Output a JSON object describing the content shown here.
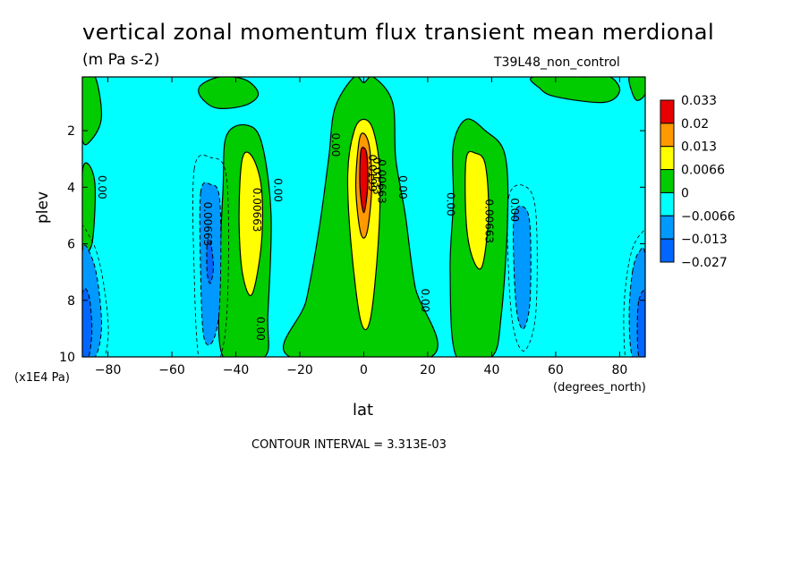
{
  "chart_data": {
    "type": "heatmap",
    "title": "vertical zonal momentum flux transient mean merdional",
    "units": "(m Pa s-2)",
    "dataset": "T39L48_non_control",
    "xlabel": "lat",
    "x_unit": "(degrees_north)",
    "ylabel": "plev",
    "y_unit": "(x1E4 Pa)",
    "xlim": [
      -88,
      88
    ],
    "ylim": [
      0.1,
      10
    ],
    "y_inverted": true,
    "x_ticks": [
      -80,
      -60,
      -40,
      -20,
      0,
      20,
      40,
      60,
      80
    ],
    "x_tick_labels": [
      "−80",
      "−60",
      "−40",
      "−20",
      "0",
      "20",
      "40",
      "60",
      "80"
    ],
    "y_ticks": [
      2,
      4,
      6,
      8,
      10
    ],
    "y_tick_labels": [
      "2",
      "4",
      "6",
      "8",
      "10"
    ],
    "contour_interval_text": "CONTOUR INTERVAL = 3.313E-03",
    "legend": {
      "placement": "right",
      "levels": [
        "0.033",
        "0.02",
        "0.013",
        "0.0066",
        "0",
        "−0.0066",
        "−0.013",
        "−0.027"
      ],
      "colors": [
        "#e60000",
        "#ff9900",
        "#ffff00",
        "#00cc00",
        "#00ffff",
        "#0099ff",
        "#0066ff"
      ]
    },
    "fill_levels": {
      "bg": "#00ffff",
      "pos1": "#00cc00",
      "pos2": "#ffff00",
      "pos3": "#ff9900",
      "pos4": "#e60000",
      "neg1": "#0099ff",
      "neg2": "#0066ff"
    },
    "regions": [
      {
        "kind": "pos1",
        "points": [
          [
            -3,
            0.1
          ],
          [
            0,
            0.3
          ],
          [
            3,
            0.1
          ],
          [
            9,
            1.0
          ],
          [
            10,
            3.0
          ],
          [
            13,
            5.0
          ],
          [
            16,
            7.5
          ],
          [
            21,
            10
          ],
          [
            -23,
            10
          ],
          [
            -18,
            8.0
          ],
          [
            -14,
            5.5
          ],
          [
            -11,
            3.0
          ],
          [
            -9,
            1.2
          ]
        ]
      },
      {
        "kind": "pos2",
        "points": [
          [
            -3,
            2.0
          ],
          [
            0,
            1.6
          ],
          [
            3,
            2.0
          ],
          [
            5,
            3.5
          ],
          [
            4.5,
            6.0
          ],
          [
            2,
            8.7
          ],
          [
            -1,
            8.7
          ],
          [
            -4,
            6.0
          ],
          [
            -5,
            3.5
          ]
        ]
      },
      {
        "kind": "pos3",
        "points": [
          [
            -1.5,
            2.4
          ],
          [
            0,
            2.1
          ],
          [
            1.8,
            2.6
          ],
          [
            2.5,
            4.0
          ],
          [
            1,
            5.6
          ],
          [
            -1,
            5.6
          ],
          [
            -2.5,
            4.0
          ]
        ]
      },
      {
        "kind": "pos4",
        "points": [
          [
            -1,
            2.8
          ],
          [
            0,
            2.6
          ],
          [
            1,
            2.9
          ],
          [
            1.2,
            4.0
          ],
          [
            0,
            4.9
          ],
          [
            -1.2,
            4.0
          ]
        ]
      },
      {
        "kind": "pos1",
        "points": [
          [
            -43,
            2.2
          ],
          [
            -37,
            1.8
          ],
          [
            -32,
            2.4
          ],
          [
            -29,
            5.0
          ],
          [
            -30,
            8.5
          ],
          [
            -31,
            10
          ],
          [
            -44,
            10
          ],
          [
            -45,
            7.0
          ],
          [
            -44,
            4.0
          ]
        ]
      },
      {
        "kind": "pos2",
        "points": [
          [
            -38,
            3.0
          ],
          [
            -35,
            2.9
          ],
          [
            -32,
            4.0
          ],
          [
            -32,
            6.0
          ],
          [
            -35,
            7.8
          ],
          [
            -38,
            7.0
          ],
          [
            -39,
            5.0
          ]
        ]
      },
      {
        "kind": "pos1",
        "points": [
          [
            28,
            2.5
          ],
          [
            32,
            1.6
          ],
          [
            38,
            2.0
          ],
          [
            44,
            2.8
          ],
          [
            45,
            5.0
          ],
          [
            43,
            8.5
          ],
          [
            40,
            10
          ],
          [
            29,
            10
          ],
          [
            27,
            7.0
          ],
          [
            28,
            4.5
          ]
        ]
      },
      {
        "kind": "pos2",
        "points": [
          [
            32,
            3.0
          ],
          [
            35,
            2.8
          ],
          [
            38,
            3.2
          ],
          [
            39,
            5.0
          ],
          [
            37,
            6.8
          ],
          [
            34,
            6.5
          ],
          [
            32,
            5.2
          ]
        ]
      },
      {
        "kind": "pos1",
        "points": [
          [
            -51,
            0.4
          ],
          [
            -45,
            0.1
          ],
          [
            -37,
            0.2
          ],
          [
            -33,
            0.7
          ],
          [
            -37,
            1.1
          ],
          [
            -46,
            1.2
          ],
          [
            -51,
            0.8
          ]
        ]
      },
      {
        "kind": "pos1",
        "points": [
          [
            53,
            0.1
          ],
          [
            70,
            0.1
          ],
          [
            77,
            0.1
          ],
          [
            80,
            0.6
          ],
          [
            75,
            1.0
          ],
          [
            60,
            0.8
          ],
          [
            55,
            0.5
          ]
        ]
      },
      {
        "kind": "pos1",
        "points": [
          [
            -88,
            0.1
          ],
          [
            -84,
            0.1
          ],
          [
            -82,
            1.5
          ],
          [
            -85,
            2.3
          ],
          [
            -88,
            2.3
          ]
        ]
      },
      {
        "kind": "pos1",
        "points": [
          [
            83,
            0.1
          ],
          [
            88,
            0.1
          ],
          [
            88,
            0.7
          ],
          [
            85,
            0.9
          ]
        ]
      },
      {
        "kind": "pos1",
        "points": [
          [
            -88,
            3.5
          ],
          [
            -86,
            3.2
          ],
          [
            -84,
            4.0
          ],
          [
            -85,
            6.0
          ],
          [
            -88,
            6.0
          ]
        ]
      },
      {
        "kind": "neg1",
        "points": [
          [
            -51,
            4.2
          ],
          [
            -48,
            3.9
          ],
          [
            -45,
            4.5
          ],
          [
            -45,
            8.0
          ],
          [
            -47,
            9.4
          ],
          [
            -50,
            9.3
          ],
          [
            -51,
            7.0
          ]
        ]
      },
      {
        "kind": "neg2",
        "points": [
          [
            -49,
            6.0
          ],
          [
            -48,
            5.9
          ],
          [
            -47,
            6.8
          ],
          [
            -48,
            7.4
          ],
          [
            -49,
            7.0
          ]
        ]
      },
      {
        "kind": "neg1",
        "points": [
          [
            47,
            5.0
          ],
          [
            50,
            4.7
          ],
          [
            52,
            5.4
          ],
          [
            52,
            8.0
          ],
          [
            50,
            9.0
          ],
          [
            48,
            8.5
          ],
          [
            47,
            7.0
          ]
        ]
      },
      {
        "kind": "neg1",
        "points": [
          [
            -88,
            6.3
          ],
          [
            -85,
            6.5
          ],
          [
            -83,
            7.5
          ],
          [
            -82,
            9.0
          ],
          [
            -84,
            10
          ],
          [
            -88,
            10
          ]
        ]
      },
      {
        "kind": "neg2",
        "points": [
          [
            -88,
            7.8
          ],
          [
            -86,
            7.8
          ],
          [
            -85,
            9.0
          ],
          [
            -86,
            10
          ],
          [
            -88,
            10
          ]
        ]
      },
      {
        "kind": "neg1",
        "points": [
          [
            84,
            7.0
          ],
          [
            86,
            6.3
          ],
          [
            88,
            6.5
          ],
          [
            88,
            10
          ],
          [
            84,
            10
          ],
          [
            83,
            8.5
          ]
        ]
      },
      {
        "kind": "neg2",
        "points": [
          [
            86,
            8.0
          ],
          [
            88,
            7.8
          ],
          [
            88,
            10
          ],
          [
            86,
            10
          ],
          [
            85.5,
            9.0
          ]
        ]
      }
    ],
    "contour_labels": [
      {
        "text": "0.00",
        "x": -83,
        "y": 4.0
      },
      {
        "text": "0.00663",
        "x": -50,
        "y": 5.3
      },
      {
        "text": "0.00663",
        "x": -34.5,
        "y": 4.8
      },
      {
        "text": "0.00",
        "x": -28,
        "y": 4.1
      },
      {
        "text": "0.00",
        "x": -33.5,
        "y": 9.0
      },
      {
        "text": "0.00",
        "x": -10,
        "y": 2.5
      },
      {
        "text": "0.0199",
        "x": 1.5,
        "y": 3.5
      },
      {
        "text": "0.0133",
        "x": 3.0,
        "y": 3.6
      },
      {
        "text": "0.00663",
        "x": 4.5,
        "y": 3.8
      },
      {
        "text": "0.00",
        "x": 11,
        "y": 4.0
      },
      {
        "text": "0.00",
        "x": 18,
        "y": 8.0
      },
      {
        "text": "0.00",
        "x": 26,
        "y": 4.6
      },
      {
        "text": "0.00663",
        "x": 38,
        "y": 5.2
      },
      {
        "text": "0.00",
        "x": 46,
        "y": 4.8
      }
    ]
  }
}
